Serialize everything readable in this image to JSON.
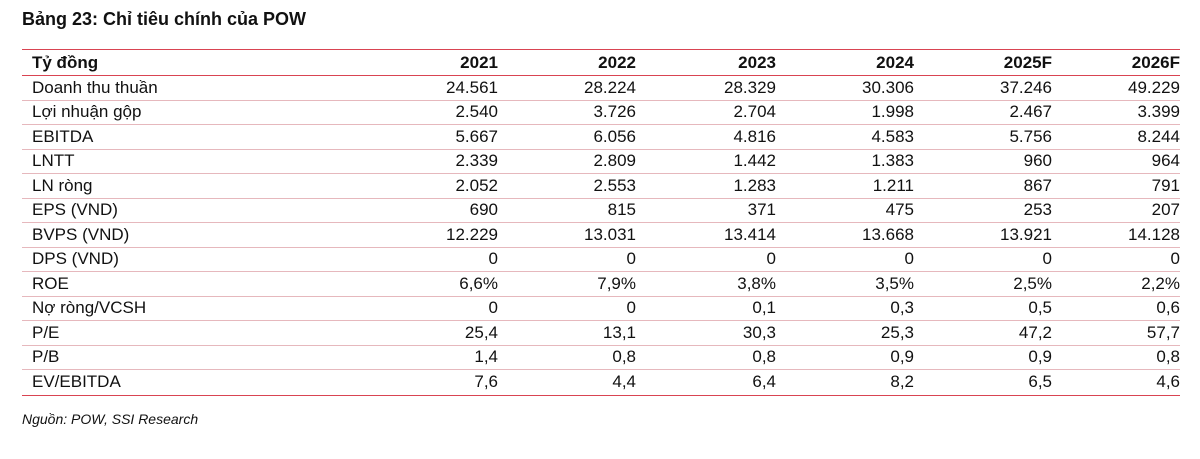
{
  "title": "Bảng 23: Chỉ tiêu chính của POW",
  "table": {
    "header": [
      "Tỷ đồng",
      "2021",
      "2022",
      "2023",
      "2024",
      "2025F",
      "2026F"
    ],
    "rows": [
      [
        "Doanh thu thuần",
        "24.561",
        "28.224",
        "28.329",
        "30.306",
        "37.246",
        "49.229"
      ],
      [
        "Lợi nhuận gộp",
        "2.540",
        "3.726",
        "2.704",
        "1.998",
        "2.467",
        "3.399"
      ],
      [
        "EBITDA",
        "5.667",
        "6.056",
        "4.816",
        "4.583",
        "5.756",
        "8.244"
      ],
      [
        "LNTT",
        "2.339",
        "2.809",
        "1.442",
        "1.383",
        "960",
        "964"
      ],
      [
        "LN ròng",
        "2.052",
        "2.553",
        "1.283",
        "1.211",
        "867",
        "791"
      ],
      [
        "EPS (VND)",
        "690",
        "815",
        "371",
        "475",
        "253",
        "207"
      ],
      [
        "BVPS (VND)",
        "12.229",
        "13.031",
        "13.414",
        "13.668",
        "13.921",
        "14.128"
      ],
      [
        "DPS (VND)",
        "0",
        "0",
        "0",
        "0",
        "0",
        "0"
      ],
      [
        "ROE",
        "6,6%",
        "7,9%",
        "3,8%",
        "3,5%",
        "2,5%",
        "2,2%"
      ],
      [
        "Nợ ròng/VCSH",
        "0",
        "0",
        "0,1",
        "0,3",
        "0,5",
        "0,6"
      ],
      [
        "P/E",
        "25,4",
        "13,1",
        "30,3",
        "25,3",
        "47,2",
        "57,7"
      ],
      [
        "P/B",
        "1,4",
        "0,8",
        "0,8",
        "0,9",
        "0,9",
        "0,8"
      ],
      [
        "EV/EBITDA",
        "7,6",
        "4,4",
        "6,4",
        "8,2",
        "6,5",
        "4,6"
      ]
    ]
  },
  "source": "Nguồn: POW, SSI Research"
}
